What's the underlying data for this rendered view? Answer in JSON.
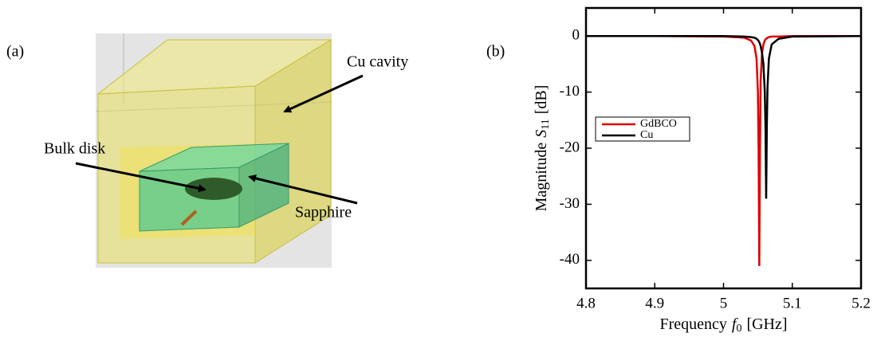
{
  "panel_a": {
    "label": "(a)",
    "annotations": [
      "Cu cavity",
      "Bulk disk",
      "Sapphire"
    ]
  },
  "chart_data": {
    "type": "line",
    "panel_label": "(b)",
    "xlabel": {
      "text": "Frequency",
      "symbol": "f",
      "subscript": "0",
      "unit": "[GHz]"
    },
    "ylabel": {
      "text": "Magnitude",
      "symbol": "S",
      "subscript": "11",
      "unit": "[dB]"
    },
    "x": [
      4.8,
      4.9,
      5.0,
      5.03,
      5.04,
      5.045,
      5.048,
      5.05,
      5.051,
      5.052,
      5.053,
      5.054,
      5.056,
      5.058,
      5.06,
      5.061,
      5.062,
      5.063,
      5.064,
      5.066,
      5.07,
      5.08,
      5.1,
      5.2
    ],
    "series": [
      {
        "name": "GdBCO",
        "color": "#e00000",
        "values": [
          0,
          0,
          -0.1,
          -0.3,
          -0.8,
          -1.8,
          -4,
          -10,
          -20,
          -41,
          -20,
          -8,
          -3,
          -1.5,
          -0.8,
          -0.6,
          -0.5,
          -0.4,
          -0.3,
          -0.2,
          -0.1,
          -0.1,
          0,
          0
        ]
      },
      {
        "name": "Cu",
        "color": "#000000",
        "values": [
          0,
          0,
          0,
          -0.1,
          -0.2,
          -0.3,
          -0.5,
          -0.7,
          -0.9,
          -1.1,
          -1.4,
          -1.8,
          -3,
          -5,
          -10,
          -16,
          -29,
          -16,
          -9,
          -4,
          -1.5,
          -0.5,
          -0.1,
          0
        ]
      }
    ],
    "xlim": [
      4.8,
      5.2
    ],
    "xticks": [
      4.8,
      4.9,
      5,
      5.1,
      5.2
    ],
    "ylim": [
      -45,
      5
    ],
    "yticks": [
      -40,
      -30,
      -20,
      -10,
      0
    ],
    "legend": "upper left"
  }
}
